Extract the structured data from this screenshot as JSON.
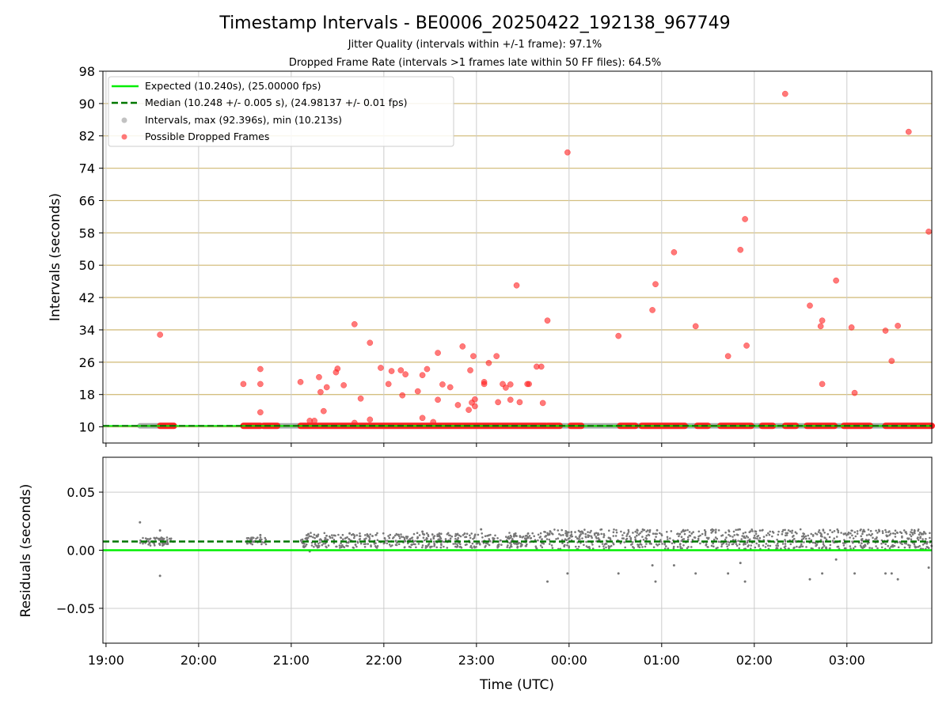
{
  "title": "Timestamp Intervals - BE0006_20250422_192138_967749",
  "subtitle1": "Jitter Quality (intervals within +/-1 frame): 97.1%",
  "subtitle2": "Dropped Frame Rate (intervals >1 frames late within 50 FF files): 64.5%",
  "xlabel": "Time (UTC)",
  "colors": {
    "expected": "#00ee00",
    "median": "#007700",
    "intervals": "#999999",
    "dropped": "#ff2020",
    "hgrid": "#d4bf80",
    "vgrid": "#cccccc"
  },
  "chart_data": [
    {
      "type": "scatter",
      "panel": "top",
      "ylabel": "Intervals (seconds)",
      "x_axis": "time",
      "xlim": [
        "18:58",
        "03:55"
      ],
      "ylim": [
        6,
        98
      ],
      "yticks": [
        10,
        18,
        26,
        34,
        42,
        50,
        58,
        66,
        74,
        82,
        90,
        98
      ],
      "xtick_labels": [
        "19:00",
        "20:00",
        "21:00",
        "22:00",
        "23:00",
        "00:00",
        "01:00",
        "02:00",
        "03:00"
      ],
      "grid": "horizontal lines at y ticks, vertical lines at x ticks",
      "legend_position": "upper-left",
      "legend": [
        "Expected (10.240s), (25.00000 fps)",
        "Median (10.248 +/- 0.005 s), (24.98137 +/- 0.01 fps)",
        "Intervals, max (92.396s), min (10.213s)",
        "Possible Dropped Frames"
      ],
      "expected_line": 10.24,
      "median_line": 10.248,
      "intervals_baseline_segments": [
        [
          "19:22",
          "19:44"
        ],
        [
          "20:30",
          "03:55"
        ]
      ],
      "dropped_baseline_segments": [
        [
          "19:35",
          "19:44"
        ],
        [
          "20:29",
          "20:40"
        ],
        [
          "20:42",
          "20:51"
        ],
        [
          "21:06",
          "23:45"
        ],
        [
          "23:46",
          "23:54"
        ],
        [
          "00:01",
          "00:08"
        ],
        [
          "00:33",
          "00:43"
        ],
        [
          "00:47",
          "01:15"
        ],
        [
          "01:23",
          "01:30"
        ],
        [
          "01:38",
          "01:58"
        ],
        [
          "02:05",
          "02:12"
        ],
        [
          "02:20",
          "02:27"
        ],
        [
          "02:34",
          "02:52"
        ],
        [
          "02:58",
          "03:15"
        ],
        [
          "03:25",
          "03:55"
        ]
      ],
      "dropped_points": [
        {
          "x": "19:35",
          "y": 32.8
        },
        {
          "x": "20:29",
          "y": 20.6
        },
        {
          "x": "20:40",
          "y": 24.3
        },
        {
          "x": "20:40",
          "y": 20.6
        },
        {
          "x": "20:40",
          "y": 13.6
        },
        {
          "x": "21:06",
          "y": 21.1
        },
        {
          "x": "21:12",
          "y": 11.5
        },
        {
          "x": "21:15",
          "y": 11.5
        },
        {
          "x": "21:18",
          "y": 22.3
        },
        {
          "x": "21:19",
          "y": 18.6
        },
        {
          "x": "21:21",
          "y": 13.9
        },
        {
          "x": "21:23",
          "y": 19.8
        },
        {
          "x": "21:29",
          "y": 23.5
        },
        {
          "x": "21:30",
          "y": 24.4
        },
        {
          "x": "21:34",
          "y": 20.3
        },
        {
          "x": "21:41",
          "y": 35.4
        },
        {
          "x": "21:41",
          "y": 11.0
        },
        {
          "x": "21:45",
          "y": 17.0
        },
        {
          "x": "21:51",
          "y": 30.8
        },
        {
          "x": "21:51",
          "y": 11.8
        },
        {
          "x": "21:58",
          "y": 24.6
        },
        {
          "x": "22:03",
          "y": 20.6
        },
        {
          "x": "22:05",
          "y": 23.8
        },
        {
          "x": "22:11",
          "y": 24.0
        },
        {
          "x": "22:12",
          "y": 17.8
        },
        {
          "x": "22:14",
          "y": 23.0
        },
        {
          "x": "22:22",
          "y": 18.8
        },
        {
          "x": "22:25",
          "y": 22.8
        },
        {
          "x": "22:25",
          "y": 12.2
        },
        {
          "x": "22:28",
          "y": 24.3
        },
        {
          "x": "22:32",
          "y": 11.2
        },
        {
          "x": "22:35",
          "y": 16.7
        },
        {
          "x": "22:35",
          "y": 28.3
        },
        {
          "x": "22:38",
          "y": 20.5
        },
        {
          "x": "22:43",
          "y": 19.8
        },
        {
          "x": "22:48",
          "y": 15.4
        },
        {
          "x": "22:51",
          "y": 29.9
        },
        {
          "x": "22:55",
          "y": 14.2
        },
        {
          "x": "22:56",
          "y": 24.0
        },
        {
          "x": "22:57",
          "y": 16.0
        },
        {
          "x": "22:58",
          "y": 27.5
        },
        {
          "x": "22:59",
          "y": 16.8
        },
        {
          "x": "22:59",
          "y": 15.1
        },
        {
          "x": "23:05",
          "y": 21.1
        },
        {
          "x": "23:05",
          "y": 20.6
        },
        {
          "x": "23:08",
          "y": 25.8
        },
        {
          "x": "23:13",
          "y": 27.5
        },
        {
          "x": "23:14",
          "y": 16.1
        },
        {
          "x": "23:17",
          "y": 20.6
        },
        {
          "x": "23:19",
          "y": 19.7
        },
        {
          "x": "23:22",
          "y": 20.5
        },
        {
          "x": "23:22",
          "y": 16.7
        },
        {
          "x": "23:26",
          "y": 45.0
        },
        {
          "x": "23:28",
          "y": 16.1
        },
        {
          "x": "23:33",
          "y": 20.6
        },
        {
          "x": "23:34",
          "y": 20.6
        },
        {
          "x": "23:39",
          "y": 24.9
        },
        {
          "x": "23:42",
          "y": 24.9
        },
        {
          "x": "23:43",
          "y": 15.9
        },
        {
          "x": "23:46",
          "y": 36.3
        },
        {
          "x": "23:59",
          "y": 77.9
        },
        {
          "x": "00:32",
          "y": 32.5
        },
        {
          "x": "00:54",
          "y": 38.9
        },
        {
          "x": "00:56",
          "y": 45.3
        },
        {
          "x": "01:08",
          "y": 53.2
        },
        {
          "x": "01:22",
          "y": 34.9
        },
        {
          "x": "01:43",
          "y": 27.5
        },
        {
          "x": "01:51",
          "y": 53.8
        },
        {
          "x": "01:54",
          "y": 61.4
        },
        {
          "x": "01:55",
          "y": 30.1
        },
        {
          "x": "02:20",
          "y": 92.4
        },
        {
          "x": "02:36",
          "y": 40.0
        },
        {
          "x": "02:43",
          "y": 34.9
        },
        {
          "x": "02:44",
          "y": 36.3
        },
        {
          "x": "02:44",
          "y": 20.6
        },
        {
          "x": "02:53",
          "y": 46.2
        },
        {
          "x": "03:03",
          "y": 34.6
        },
        {
          "x": "03:05",
          "y": 18.4
        },
        {
          "x": "03:25",
          "y": 33.8
        },
        {
          "x": "03:29",
          "y": 26.3
        },
        {
          "x": "03:33",
          "y": 35.0
        },
        {
          "x": "03:40",
          "y": 83.0
        },
        {
          "x": "03:53",
          "y": 58.3
        }
      ]
    },
    {
      "type": "scatter",
      "panel": "bottom",
      "ylabel": "Residuals (seconds)",
      "x_axis": "time",
      "xlim": [
        "18:58",
        "03:55"
      ],
      "ylim": [
        -0.08,
        0.08
      ],
      "ytick_labels": [
        "0.05",
        "0.00",
        "−0.05"
      ],
      "yticks": [
        0.05,
        0.0,
        -0.05
      ],
      "xtick_labels": [
        "19:00",
        "20:00",
        "21:00",
        "22:00",
        "23:00",
        "00:00",
        "01:00",
        "02:00",
        "03:00"
      ],
      "grid": "horizontal and vertical lines at ticks",
      "expected_line": 0.0,
      "median_line": 0.0075,
      "band_segments": [
        {
          "from": "19:22",
          "to": "19:44",
          "low": 0.004,
          "high": 0.011
        },
        {
          "from": "20:30",
          "to": "20:44",
          "low": 0.005,
          "high": 0.011
        },
        {
          "from": "21:06",
          "to": "23:38",
          "low": 0.002,
          "high": 0.015
        },
        {
          "from": "23:38",
          "to": "03:55",
          "low": 0.001,
          "high": 0.018
        }
      ],
      "outliers": [
        {
          "x": "19:22",
          "y": 0.024
        },
        {
          "x": "19:35",
          "y": -0.022
        },
        {
          "x": "19:35",
          "y": 0.017
        },
        {
          "x": "20:40",
          "y": 0.013
        },
        {
          "x": "21:12",
          "y": -0.001
        },
        {
          "x": "22:25",
          "y": 0.016
        },
        {
          "x": "23:03",
          "y": 0.018
        },
        {
          "x": "23:46",
          "y": -0.027
        },
        {
          "x": "23:59",
          "y": -0.02
        },
        {
          "x": "00:32",
          "y": -0.02
        },
        {
          "x": "00:54",
          "y": -0.013
        },
        {
          "x": "00:56",
          "y": -0.027
        },
        {
          "x": "01:08",
          "y": -0.013
        },
        {
          "x": "01:22",
          "y": -0.02
        },
        {
          "x": "01:43",
          "y": -0.02
        },
        {
          "x": "01:51",
          "y": -0.011
        },
        {
          "x": "01:54",
          "y": -0.027
        },
        {
          "x": "02:36",
          "y": -0.025
        },
        {
          "x": "02:44",
          "y": -0.02
        },
        {
          "x": "02:53",
          "y": -0.008
        },
        {
          "x": "03:05",
          "y": -0.02
        },
        {
          "x": "03:25",
          "y": -0.02
        },
        {
          "x": "03:29",
          "y": -0.02
        },
        {
          "x": "03:33",
          "y": -0.025
        },
        {
          "x": "03:53",
          "y": -0.015
        }
      ]
    }
  ]
}
